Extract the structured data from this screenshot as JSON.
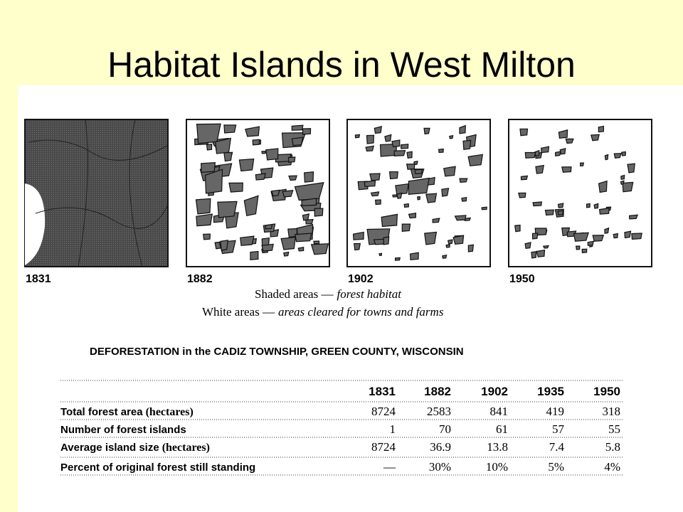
{
  "title": "Habitat Islands in West Milton",
  "maps": [
    {
      "label": "1831"
    },
    {
      "label": "1882"
    },
    {
      "label": "1902"
    },
    {
      "label": "1950"
    }
  ],
  "legend": [
    {
      "label": "Shaded areas —",
      "text": "forest habitat"
    },
    {
      "label": "White areas —",
      "text": "areas cleared for towns and farms"
    }
  ],
  "table": {
    "title": "DEFORESTATION in the CADIZ TOWNSHIP, GREEN COUNTY, WISCONSIN",
    "header": [
      "1831",
      "1882",
      "1902",
      "1935",
      "1950"
    ],
    "rows": [
      {
        "label": "Total forest area",
        "unit": "(hectares)",
        "cells": [
          "8724",
          "2583",
          "841",
          "419",
          "318"
        ]
      },
      {
        "label": "Number of forest islands",
        "cells": [
          "1",
          "70",
          "61",
          "57",
          "55"
        ]
      },
      {
        "label": "Average island size",
        "unit": "(hectares)",
        "cells": [
          "8724",
          "36.9",
          "13.8",
          "7.4",
          "5.8"
        ]
      },
      {
        "label": "Percent of original forest still standing",
        "cells": [
          "—",
          "30%",
          "10%",
          "5%",
          "4%"
        ]
      }
    ]
  }
}
